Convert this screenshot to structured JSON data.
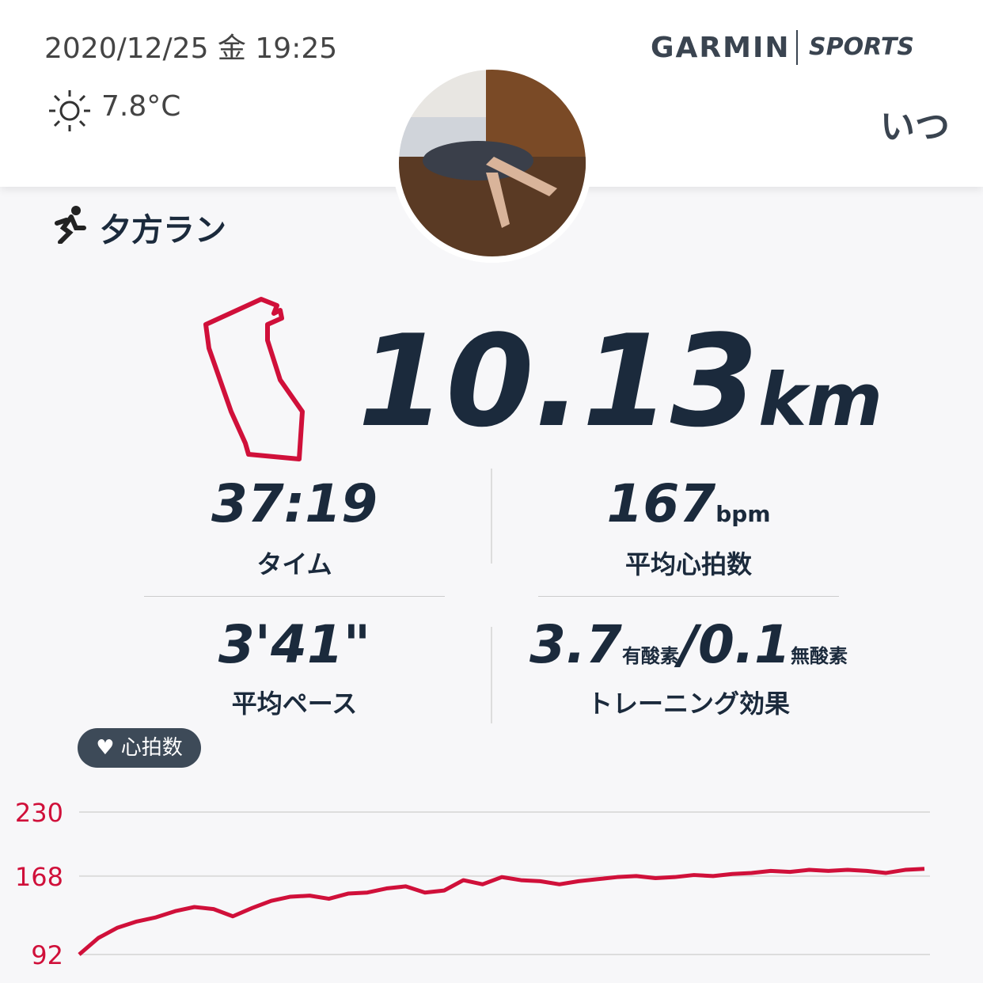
{
  "header": {
    "datetime": "2020/12/25 金 19:25",
    "temperature": "7.8°C",
    "brand": "GARMIN",
    "brand_sub": "SPORTS",
    "user": "いつ"
  },
  "activity": {
    "name": "夕方ラン",
    "distance": "10.13",
    "distance_unit": "km"
  },
  "stats": [
    {
      "value": "37:19",
      "label": "タイム"
    },
    {
      "value": "167",
      "unit": "bpm",
      "label": "平均心拍数"
    },
    {
      "value": "3'41\"",
      "label": "平均ペース"
    },
    {
      "value": "3.7",
      "unit": "有酸素",
      "value2": "/0.1",
      "unit2": "無酸素",
      "label": "トレーニング効果"
    }
  ],
  "chart_data": {
    "type": "line",
    "title": "心拍数",
    "color": "#d0103a",
    "ylim": [
      92,
      230
    ],
    "yticks": [
      92,
      168,
      230
    ],
    "grid": true,
    "values": [
      92,
      108,
      118,
      124,
      128,
      134,
      138,
      136,
      129,
      137,
      144,
      148,
      149,
      146,
      151,
      152,
      156,
      158,
      152,
      154,
      164,
      160,
      167,
      164,
      163,
      160,
      163,
      165,
      167,
      168,
      166,
      167,
      169,
      168,
      170,
      171,
      173,
      172,
      174,
      173,
      174,
      173,
      171,
      174,
      175
    ]
  }
}
